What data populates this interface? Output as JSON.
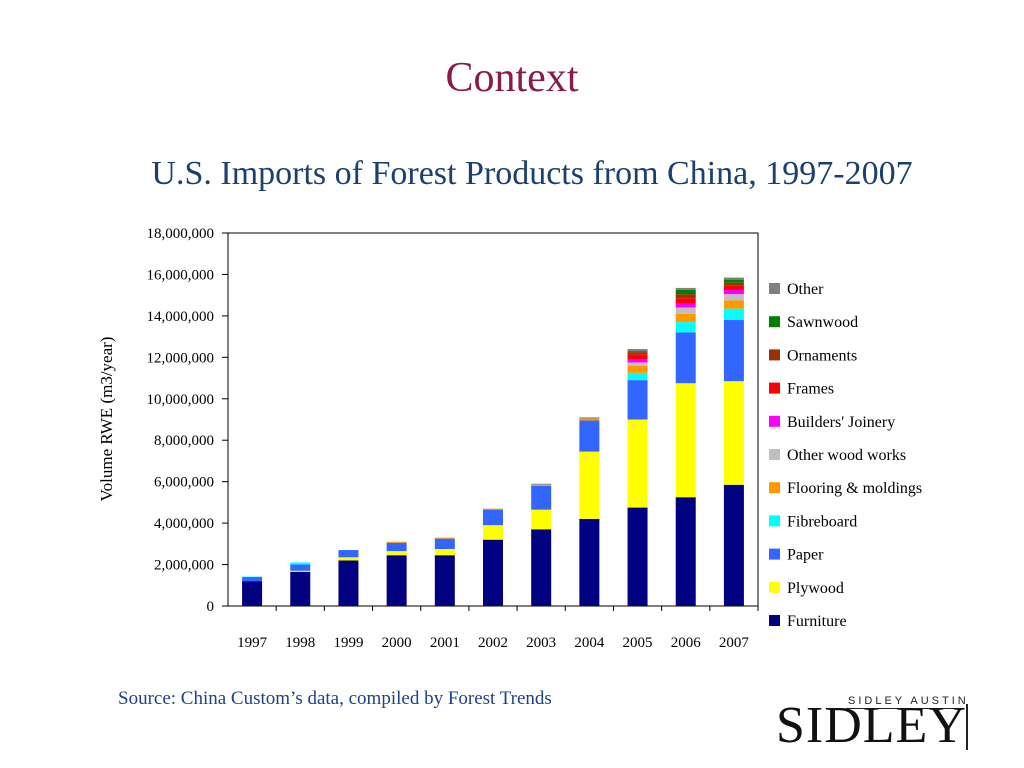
{
  "slide": {
    "title": "Context",
    "source": "Source: China Custom’s data, compiled by Forest Trends",
    "logo_top": "SIDLEY AUSTIN",
    "logo_word": "SIDLEY"
  },
  "chart_data": {
    "type": "bar",
    "stacked": true,
    "title": "U.S. Imports of Forest Products from China, 1997-2007",
    "xlabel": "",
    "ylabel": "Volume RWE (m3/year)",
    "ylim": [
      0,
      18000000
    ],
    "yticks": [
      0,
      2000000,
      4000000,
      6000000,
      8000000,
      10000000,
      12000000,
      14000000,
      16000000,
      18000000
    ],
    "ytick_labels": [
      "0",
      "2,000,000",
      "4,000,000",
      "6,000,000",
      "8,000,000",
      "10,000,000",
      "12,000,000",
      "14,000,000",
      "16,000,000",
      "18,000,000"
    ],
    "grid": false,
    "legend_position": "right",
    "categories": [
      "1997",
      "1998",
      "1999",
      "2000",
      "2001",
      "2002",
      "2003",
      "2004",
      "2005",
      "2006",
      "2007"
    ],
    "series": [
      {
        "name": "Furniture",
        "color": "#000080",
        "values": [
          1200000,
          1650000,
          2200000,
          2450000,
          2450000,
          3200000,
          3700000,
          4200000,
          4750000,
          5250000,
          5850000
        ]
      },
      {
        "name": "Plywood",
        "color": "#ffff00",
        "values": [
          0,
          50000,
          150000,
          200000,
          300000,
          700000,
          950000,
          3250000,
          4250000,
          5500000,
          5000000
        ]
      },
      {
        "name": "Paper",
        "color": "#3366ff",
        "values": [
          200000,
          300000,
          350000,
          400000,
          500000,
          750000,
          1150000,
          1500000,
          1900000,
          2450000,
          2950000
        ]
      },
      {
        "name": "Fibreboard",
        "color": "#00ffff",
        "values": [
          20000,
          100000,
          0,
          0,
          0,
          0,
          0,
          0,
          350000,
          500000,
          550000
        ]
      },
      {
        "name": "Flooring & moldings",
        "color": "#ff9900",
        "values": [
          0,
          0,
          0,
          50000,
          50000,
          50000,
          50000,
          100000,
          350000,
          400000,
          400000
        ]
      },
      {
        "name": "Other wood works",
        "color": "#c0c0c0",
        "values": [
          0,
          0,
          0,
          0,
          0,
          0,
          0,
          0,
          150000,
          300000,
          300000
        ]
      },
      {
        "name": "Builders' Joinery",
        "color": "#ff00ff",
        "values": [
          0,
          0,
          0,
          0,
          0,
          0,
          0,
          0,
          150000,
          200000,
          200000
        ]
      },
      {
        "name": "Frames",
        "color": "#ff0000",
        "values": [
          0,
          0,
          0,
          0,
          0,
          0,
          0,
          0,
          250000,
          250000,
          200000
        ]
      },
      {
        "name": "Ornaments",
        "color": "#993300",
        "values": [
          0,
          0,
          0,
          0,
          0,
          0,
          0,
          0,
          100000,
          200000,
          150000
        ]
      },
      {
        "name": "Sawnwood",
        "color": "#008000",
        "values": [
          0,
          0,
          0,
          0,
          0,
          0,
          0,
          0,
          50000,
          200000,
          150000
        ]
      },
      {
        "name": "Other",
        "color": "#808080",
        "values": [
          0,
          0,
          0,
          0,
          0,
          0,
          50000,
          50000,
          100000,
          100000,
          100000
        ]
      }
    ]
  }
}
